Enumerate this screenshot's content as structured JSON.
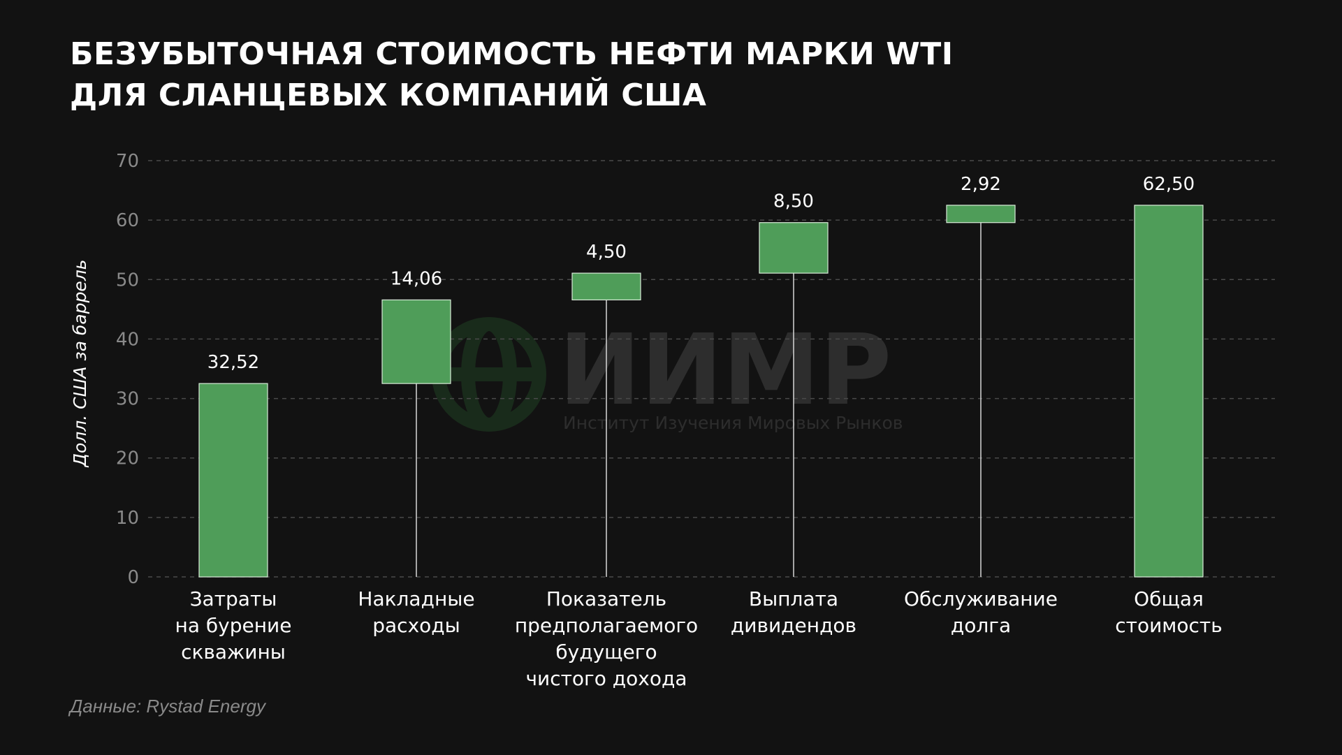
{
  "title": {
    "line1": "БЕЗУБЫТОЧНАЯ СТОИМОСТЬ НЕФТИ МАРКИ WTI",
    "line2": "ДЛЯ СЛАНЦЕВЫХ КОМПАНИЙ США"
  },
  "source": "Данные: Rystad Energy",
  "watermark": {
    "name": "ИИМР",
    "subtitle": "Институт Изучения Мировых Рынков"
  },
  "colors": {
    "background": "#121212",
    "bar": "#4f9d59",
    "bar_border": "#d8ead8",
    "grid": "#4a4a4a",
    "tick_label": "#8a8a8a",
    "text": "#ffffff"
  },
  "chart_data": {
    "type": "bar",
    "subtype": "waterfall",
    "title": "БЕЗУБЫТОЧНАЯ СТОИМОСТЬ НЕФТИ МАРКИ WTI ДЛЯ СЛАНЦЕВЫХ КОМПАНИЙ США",
    "ylabel": "Долл. США за баррель",
    "xlabel": "",
    "ylim": [
      0,
      70
    ],
    "yticks": [
      0,
      10,
      20,
      30,
      40,
      50,
      60,
      70
    ],
    "grid": true,
    "legend": "none",
    "categories": [
      [
        "Затраты",
        "на бурение",
        "скважины"
      ],
      [
        "Накладные",
        "расходы"
      ],
      [
        "Показатель",
        "предполагаемого",
        "будущего",
        "чистого дохода"
      ],
      [
        "Выплата",
        "дивидендов"
      ],
      [
        "Обслуживание",
        "долга"
      ],
      [
        "Общая",
        "стоимость"
      ]
    ],
    "values": [
      32.52,
      14.06,
      4.5,
      8.5,
      2.92,
      62.5
    ],
    "value_labels": [
      "32,52",
      "14,06",
      "4,50",
      "8,50",
      "2,92",
      "62,50"
    ],
    "is_total": [
      false,
      false,
      false,
      false,
      false,
      true
    ]
  }
}
